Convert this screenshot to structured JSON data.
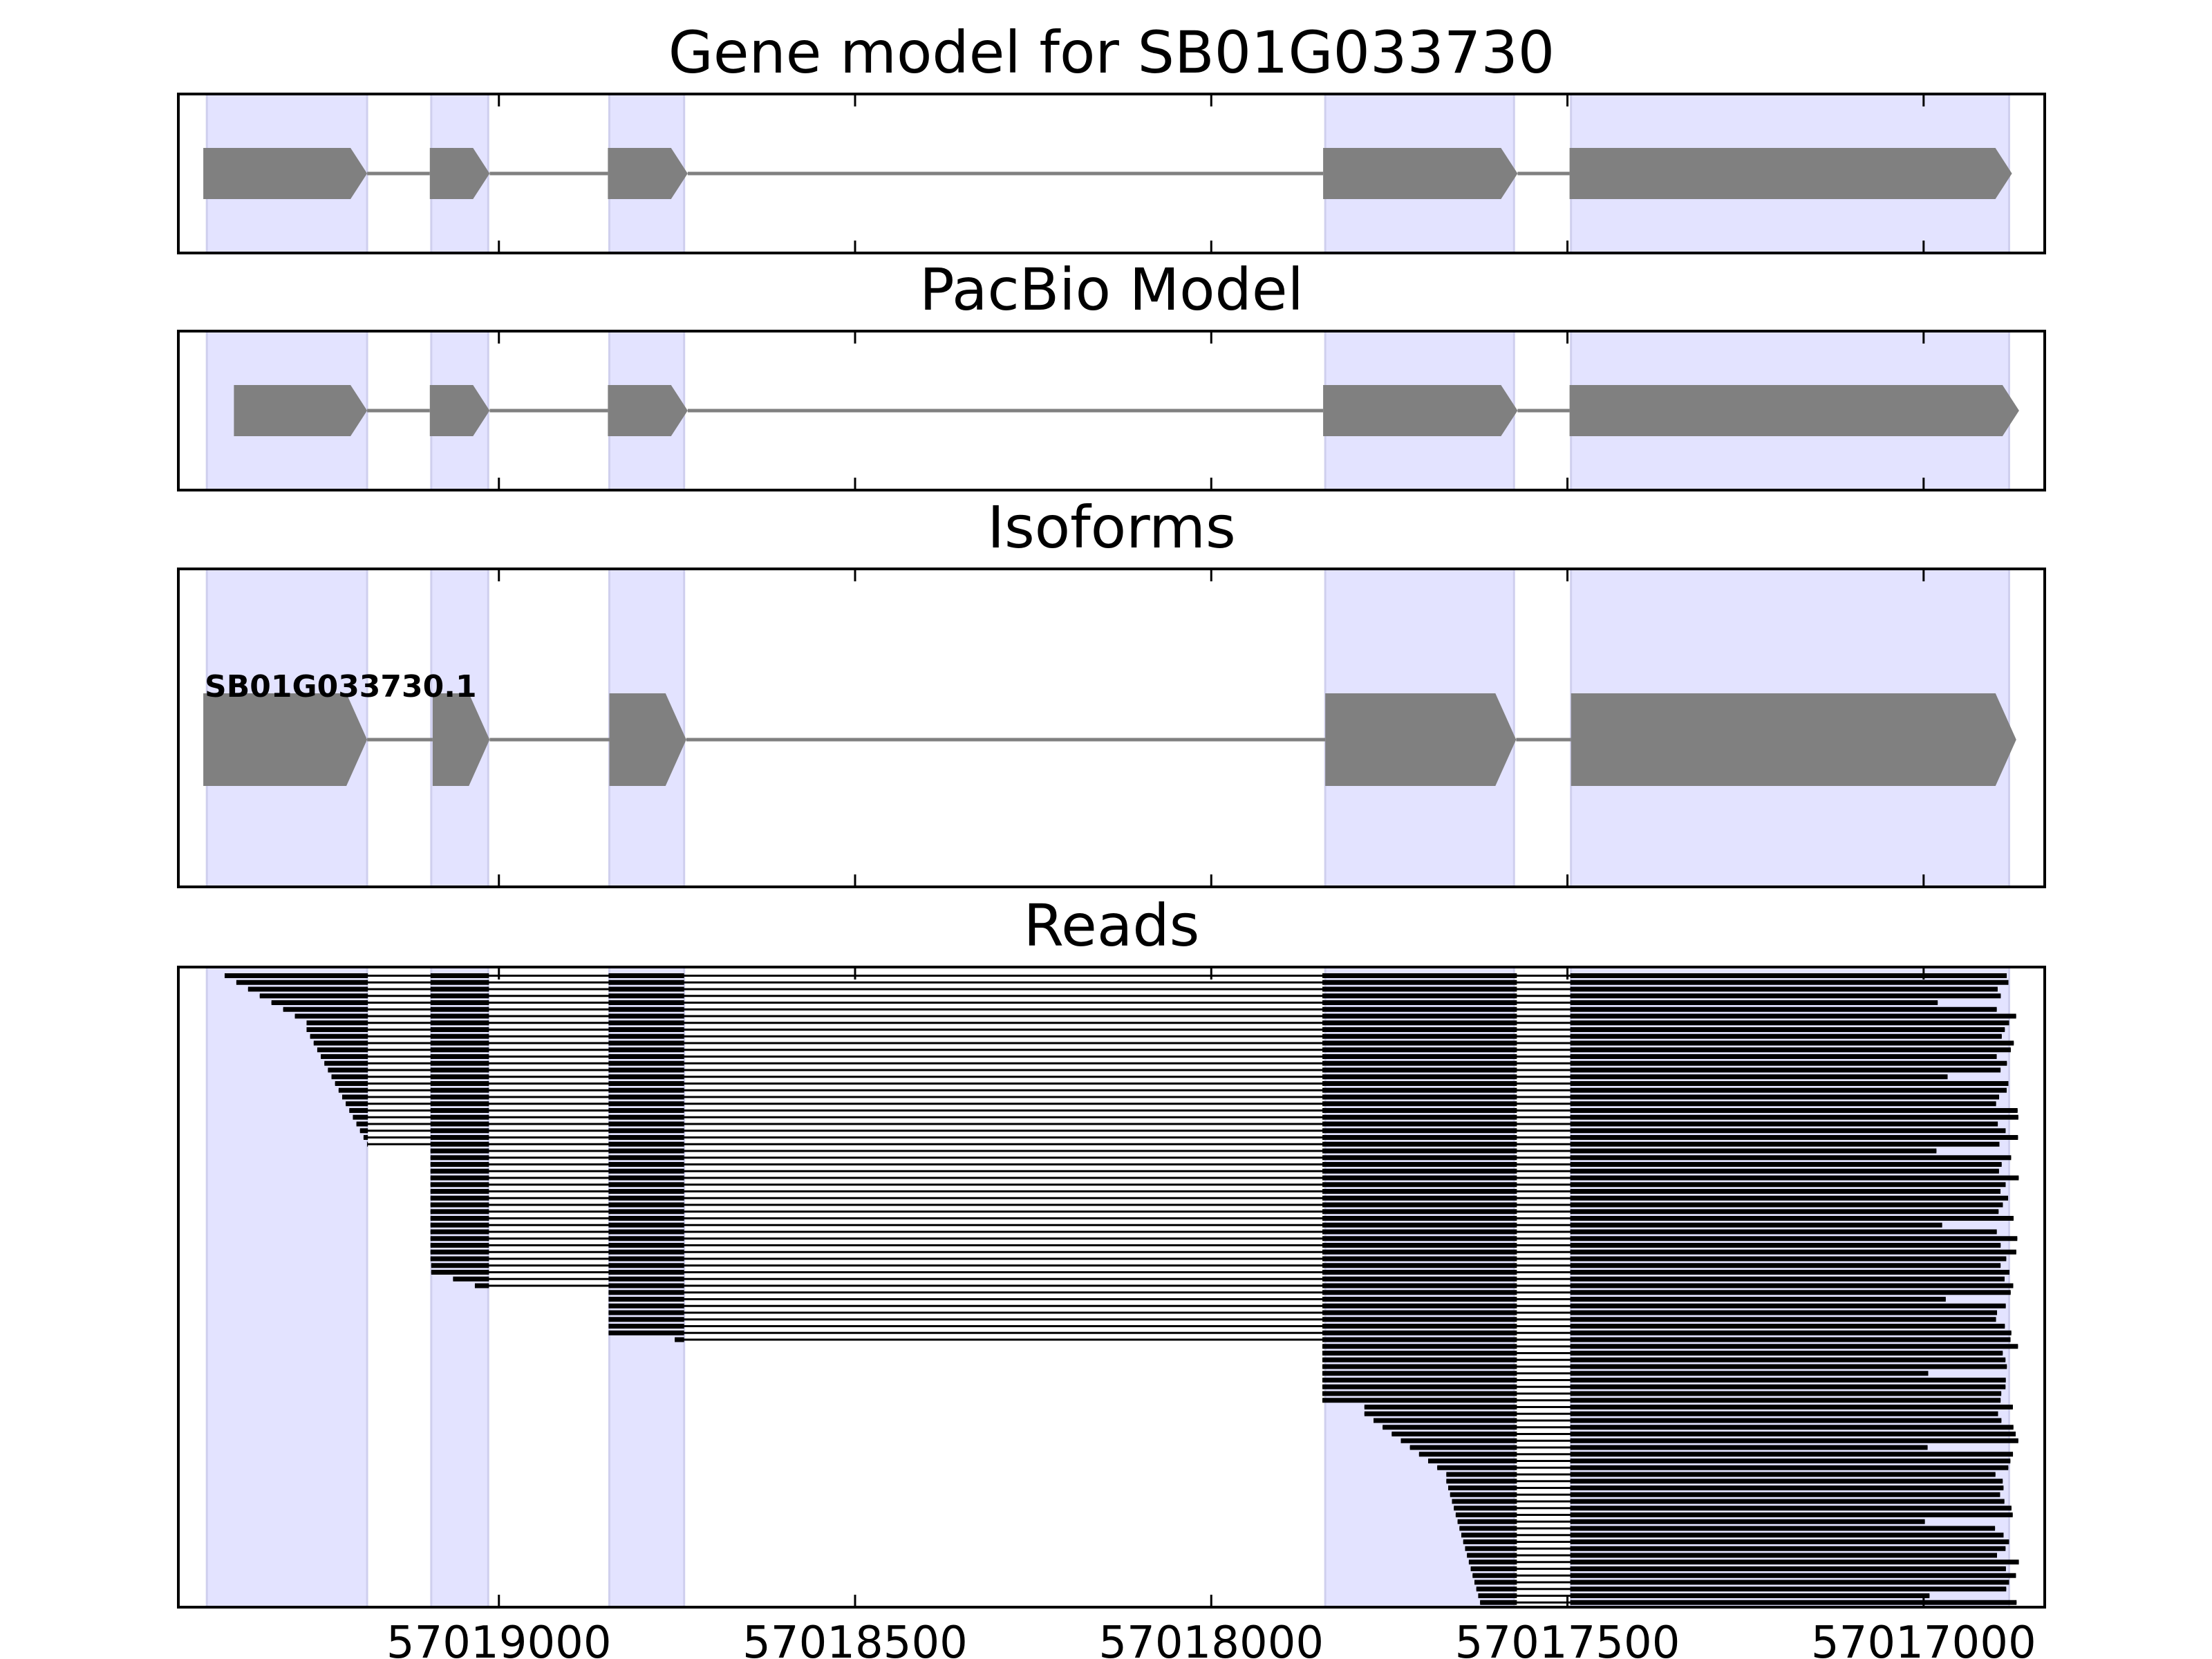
{
  "figure": {
    "panels": {
      "gene_model": {
        "title": "Gene model for SB01G033730"
      },
      "pacbio": {
        "title": "PacBio Model"
      },
      "isoforms": {
        "title": "Isoforms",
        "isoform_label": "SB01G033730.1"
      },
      "reads": {
        "title": "Reads"
      }
    }
  },
  "colors": {
    "exon_fill": "#808080",
    "intron_line": "#808080",
    "shade": "#e3e3ff",
    "read": "#000000",
    "frame": "#000000"
  },
  "chart_data": {
    "type": "gene-structure",
    "strand": "-",
    "x_ticks": [
      57019000,
      57018500,
      57018000,
      57017500,
      57017000
    ],
    "x_tick_labels": [
      "57019000",
      "57018500",
      "57018000",
      "57017500",
      "57017000"
    ],
    "xlim": [
      57019450,
      57016830
    ],
    "exon_regions": [
      [
        57019410,
        57019185
      ],
      [
        57019095,
        57019015
      ],
      [
        57018845,
        57018740
      ],
      [
        57017840,
        57017575
      ],
      [
        57017495,
        57016880
      ]
    ],
    "gene_model_exons": [
      [
        57019415,
        57019185
      ],
      [
        57019097,
        57019013
      ],
      [
        57018847,
        57018735
      ],
      [
        57017843,
        57017570
      ],
      [
        57017497,
        57016876
      ]
    ],
    "pacbio_exons": [
      [
        57019372,
        57019185
      ],
      [
        57019097,
        57019013
      ],
      [
        57018847,
        57018735
      ],
      [
        57017843,
        57017570
      ],
      [
        57017497,
        57016866
      ]
    ],
    "isoform_exons": [
      [
        57019415,
        57019185
      ],
      [
        57019093,
        57019013
      ],
      [
        57018845,
        57018737
      ],
      [
        57017840,
        57017572
      ],
      [
        57017495,
        57016870
      ]
    ],
    "reads": {
      "count": 95,
      "junctions": [
        [
          57019184,
          57019096
        ],
        [
          57019014,
          57018846
        ],
        [
          57018740,
          57017844
        ],
        [
          57017571,
          57017496
        ]
      ],
      "start_breakpoints": [
        57019385,
        57019370,
        57019340,
        57019300,
        57019270,
        57019095,
        57019050,
        57019030,
        57018850,
        57018810,
        57018790,
        57017785,
        57017740,
        57017710,
        57017670,
        57017620
      ],
      "group_sizes": [
        8,
        36,
        9,
        12,
        10,
        20
      ],
      "end_range": [
        57016900,
        57016866
      ]
    }
  }
}
